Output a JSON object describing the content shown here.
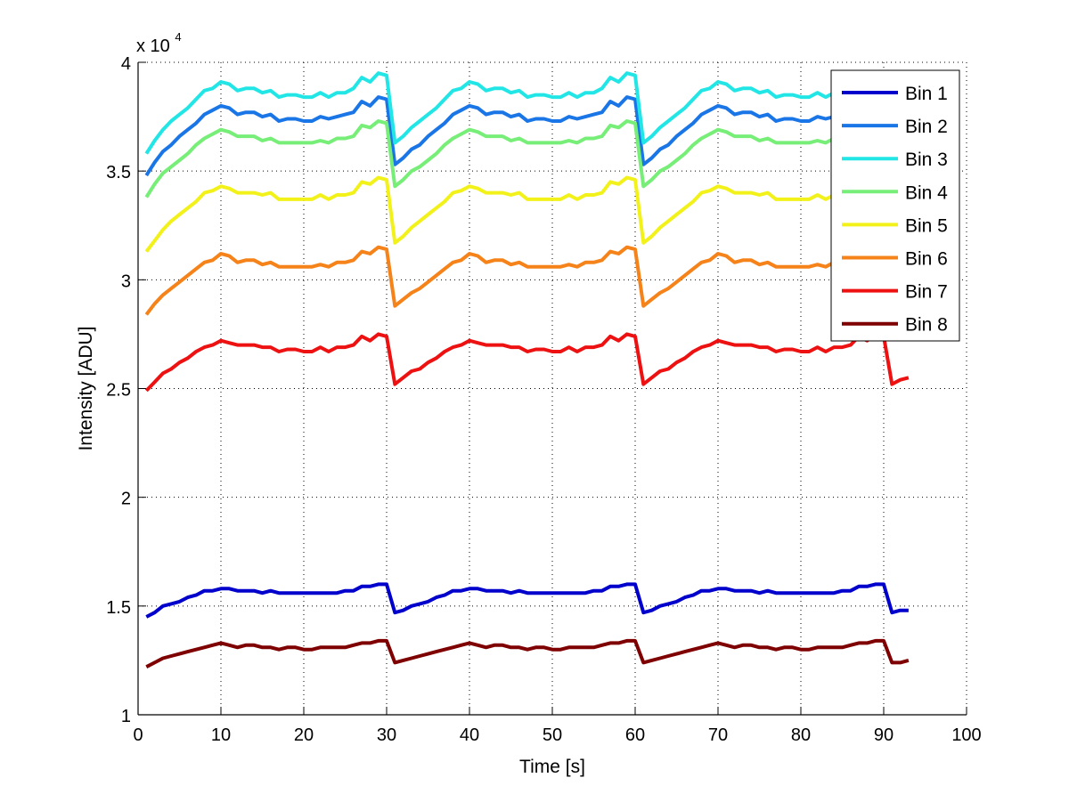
{
  "chart_data": {
    "type": "line",
    "title": "",
    "xlabel": "Time [s]",
    "ylabel": "Intensity [ADU]",
    "y_multiplier_label": "x 10",
    "y_multiplier_exponent": "4",
    "y_scale": 10000,
    "xlim": [
      0,
      100
    ],
    "ylim": [
      1,
      4
    ],
    "xticks": [
      0,
      10,
      20,
      30,
      40,
      50,
      60,
      70,
      80,
      90,
      100
    ],
    "xtick_labels": [
      "0",
      "10",
      "20",
      "30",
      "40",
      "50",
      "60",
      "70",
      "80",
      "90",
      "100"
    ],
    "yticks": [
      1,
      1.5,
      2,
      2.5,
      3,
      3.5,
      4
    ],
    "ytick_labels": [
      "1",
      "1.5",
      "2",
      "2.5",
      "3",
      "3.5",
      "4"
    ],
    "grid": true,
    "legend_position": "top-right",
    "x_start": 1,
    "x_step": 1,
    "series": [
      {
        "name": "Bin 1",
        "color": "#0000cc",
        "values": [
          1.45,
          1.47,
          1.5,
          1.51,
          1.52,
          1.54,
          1.55,
          1.57,
          1.57,
          1.58,
          1.58,
          1.57,
          1.57,
          1.57,
          1.56,
          1.57,
          1.56,
          1.56,
          1.56,
          1.56,
          1.56,
          1.56,
          1.56,
          1.56,
          1.57,
          1.57,
          1.59,
          1.59,
          1.6,
          1.6,
          1.47,
          1.48,
          1.5,
          1.51,
          1.52,
          1.54,
          1.55,
          1.57,
          1.57,
          1.58,
          1.58,
          1.57,
          1.57,
          1.57,
          1.56,
          1.57,
          1.56,
          1.56,
          1.56,
          1.56,
          1.56,
          1.56,
          1.56,
          1.56,
          1.57,
          1.57,
          1.59,
          1.59,
          1.6,
          1.6,
          1.47,
          1.48,
          1.5,
          1.51,
          1.52,
          1.54,
          1.55,
          1.57,
          1.57,
          1.58,
          1.58,
          1.57,
          1.57,
          1.57,
          1.56,
          1.57,
          1.56,
          1.56,
          1.56,
          1.56,
          1.56,
          1.56,
          1.56,
          1.56,
          1.57,
          1.57,
          1.59,
          1.59,
          1.6,
          1.6,
          1.47,
          1.48,
          1.48
        ]
      },
      {
        "name": "Bin 2",
        "color": "#1a75e6",
        "values": [
          3.48,
          3.54,
          3.59,
          3.62,
          3.66,
          3.69,
          3.72,
          3.76,
          3.78,
          3.8,
          3.79,
          3.76,
          3.77,
          3.77,
          3.75,
          3.76,
          3.73,
          3.74,
          3.74,
          3.73,
          3.73,
          3.75,
          3.74,
          3.75,
          3.76,
          3.77,
          3.82,
          3.8,
          3.84,
          3.83,
          3.53,
          3.56,
          3.6,
          3.62,
          3.66,
          3.69,
          3.72,
          3.76,
          3.78,
          3.8,
          3.79,
          3.76,
          3.77,
          3.77,
          3.75,
          3.76,
          3.73,
          3.74,
          3.74,
          3.73,
          3.73,
          3.75,
          3.74,
          3.75,
          3.76,
          3.77,
          3.82,
          3.8,
          3.84,
          3.83,
          3.53,
          3.56,
          3.6,
          3.62,
          3.66,
          3.69,
          3.72,
          3.76,
          3.78,
          3.8,
          3.79,
          3.76,
          3.77,
          3.77,
          3.75,
          3.76,
          3.73,
          3.74,
          3.74,
          3.73,
          3.73,
          3.75,
          3.74,
          3.75,
          3.76,
          3.77,
          3.82,
          3.8,
          3.84,
          3.83,
          3.53,
          3.54,
          3.56
        ]
      },
      {
        "name": "Bin 3",
        "color": "#22e6e6",
        "values": [
          3.58,
          3.64,
          3.69,
          3.73,
          3.76,
          3.79,
          3.83,
          3.87,
          3.88,
          3.91,
          3.9,
          3.87,
          3.88,
          3.88,
          3.86,
          3.87,
          3.84,
          3.85,
          3.85,
          3.84,
          3.84,
          3.86,
          3.84,
          3.86,
          3.86,
          3.88,
          3.93,
          3.91,
          3.95,
          3.94,
          3.63,
          3.66,
          3.7,
          3.73,
          3.76,
          3.79,
          3.83,
          3.87,
          3.88,
          3.91,
          3.9,
          3.87,
          3.88,
          3.88,
          3.86,
          3.87,
          3.84,
          3.85,
          3.85,
          3.84,
          3.84,
          3.86,
          3.84,
          3.86,
          3.86,
          3.88,
          3.93,
          3.91,
          3.95,
          3.94,
          3.63,
          3.66,
          3.7,
          3.73,
          3.76,
          3.79,
          3.83,
          3.87,
          3.88,
          3.91,
          3.9,
          3.87,
          3.88,
          3.88,
          3.86,
          3.87,
          3.84,
          3.85,
          3.85,
          3.84,
          3.84,
          3.86,
          3.84,
          3.86,
          3.86,
          3.88,
          3.93,
          3.91,
          3.95,
          3.94,
          3.63,
          3.65,
          3.66
        ]
      },
      {
        "name": "Bin 4",
        "color": "#77ee77",
        "values": [
          3.38,
          3.44,
          3.49,
          3.52,
          3.55,
          3.58,
          3.62,
          3.65,
          3.67,
          3.69,
          3.68,
          3.66,
          3.66,
          3.66,
          3.64,
          3.65,
          3.63,
          3.63,
          3.63,
          3.63,
          3.63,
          3.64,
          3.63,
          3.65,
          3.65,
          3.66,
          3.71,
          3.7,
          3.73,
          3.72,
          3.43,
          3.46,
          3.5,
          3.52,
          3.55,
          3.58,
          3.62,
          3.65,
          3.67,
          3.69,
          3.68,
          3.66,
          3.66,
          3.66,
          3.64,
          3.65,
          3.63,
          3.63,
          3.63,
          3.63,
          3.63,
          3.64,
          3.63,
          3.65,
          3.65,
          3.66,
          3.71,
          3.7,
          3.73,
          3.72,
          3.43,
          3.46,
          3.5,
          3.52,
          3.55,
          3.58,
          3.62,
          3.65,
          3.67,
          3.69,
          3.68,
          3.66,
          3.66,
          3.66,
          3.64,
          3.65,
          3.63,
          3.63,
          3.63,
          3.63,
          3.63,
          3.64,
          3.63,
          3.65,
          3.65,
          3.66,
          3.71,
          3.7,
          3.73,
          3.72,
          3.43,
          3.44,
          3.46
        ]
      },
      {
        "name": "Bin 5",
        "color": "#f2f21a",
        "values": [
          3.13,
          3.18,
          3.23,
          3.27,
          3.3,
          3.33,
          3.36,
          3.4,
          3.41,
          3.43,
          3.42,
          3.4,
          3.4,
          3.4,
          3.39,
          3.4,
          3.37,
          3.37,
          3.37,
          3.37,
          3.37,
          3.39,
          3.37,
          3.39,
          3.39,
          3.4,
          3.45,
          3.44,
          3.47,
          3.46,
          3.17,
          3.2,
          3.24,
          3.27,
          3.3,
          3.33,
          3.36,
          3.4,
          3.41,
          3.43,
          3.42,
          3.4,
          3.4,
          3.4,
          3.39,
          3.4,
          3.37,
          3.37,
          3.37,
          3.37,
          3.37,
          3.39,
          3.37,
          3.39,
          3.39,
          3.4,
          3.45,
          3.44,
          3.47,
          3.46,
          3.17,
          3.2,
          3.24,
          3.27,
          3.3,
          3.33,
          3.36,
          3.4,
          3.41,
          3.43,
          3.42,
          3.4,
          3.4,
          3.4,
          3.39,
          3.4,
          3.37,
          3.37,
          3.37,
          3.37,
          3.37,
          3.39,
          3.37,
          3.39,
          3.39,
          3.4,
          3.45,
          3.44,
          3.47,
          3.46,
          3.17,
          3.19,
          3.2
        ]
      },
      {
        "name": "Bin 6",
        "color": "#f5831a",
        "values": [
          2.84,
          2.89,
          2.93,
          2.96,
          2.99,
          3.02,
          3.05,
          3.08,
          3.09,
          3.12,
          3.11,
          3.08,
          3.09,
          3.09,
          3.07,
          3.08,
          3.06,
          3.06,
          3.06,
          3.06,
          3.06,
          3.07,
          3.06,
          3.08,
          3.08,
          3.09,
          3.13,
          3.12,
          3.15,
          3.14,
          2.88,
          2.91,
          2.94,
          2.96,
          2.99,
          3.02,
          3.05,
          3.08,
          3.09,
          3.12,
          3.11,
          3.08,
          3.09,
          3.09,
          3.07,
          3.08,
          3.06,
          3.06,
          3.06,
          3.06,
          3.06,
          3.07,
          3.06,
          3.08,
          3.08,
          3.09,
          3.13,
          3.12,
          3.15,
          3.14,
          2.88,
          2.91,
          2.94,
          2.96,
          2.99,
          3.02,
          3.05,
          3.08,
          3.09,
          3.12,
          3.11,
          3.08,
          3.09,
          3.09,
          3.07,
          3.08,
          3.06,
          3.06,
          3.06,
          3.06,
          3.06,
          3.07,
          3.06,
          3.08,
          3.08,
          3.09,
          3.13,
          3.12,
          3.15,
          3.14,
          2.88,
          2.9,
          2.91
        ]
      },
      {
        "name": "Bin 7",
        "color": "#ee1111",
        "values": [
          2.49,
          2.53,
          2.57,
          2.59,
          2.62,
          2.64,
          2.67,
          2.69,
          2.7,
          2.72,
          2.71,
          2.7,
          2.7,
          2.7,
          2.69,
          2.69,
          2.67,
          2.68,
          2.68,
          2.67,
          2.67,
          2.69,
          2.67,
          2.69,
          2.69,
          2.7,
          2.74,
          2.72,
          2.75,
          2.74,
          2.52,
          2.55,
          2.58,
          2.59,
          2.62,
          2.64,
          2.67,
          2.69,
          2.7,
          2.72,
          2.71,
          2.7,
          2.7,
          2.7,
          2.69,
          2.69,
          2.67,
          2.68,
          2.68,
          2.67,
          2.67,
          2.69,
          2.67,
          2.69,
          2.69,
          2.7,
          2.74,
          2.72,
          2.75,
          2.74,
          2.52,
          2.55,
          2.58,
          2.59,
          2.62,
          2.64,
          2.67,
          2.69,
          2.7,
          2.72,
          2.71,
          2.7,
          2.7,
          2.7,
          2.69,
          2.69,
          2.67,
          2.68,
          2.68,
          2.67,
          2.67,
          2.69,
          2.67,
          2.69,
          2.69,
          2.7,
          2.74,
          2.72,
          2.75,
          2.74,
          2.52,
          2.54,
          2.55
        ]
      },
      {
        "name": "Bin 8",
        "color": "#7f0000",
        "values": [
          1.22,
          1.24,
          1.26,
          1.27,
          1.28,
          1.29,
          1.3,
          1.31,
          1.32,
          1.33,
          1.32,
          1.31,
          1.32,
          1.32,
          1.31,
          1.31,
          1.3,
          1.31,
          1.31,
          1.3,
          1.3,
          1.31,
          1.31,
          1.31,
          1.31,
          1.32,
          1.33,
          1.33,
          1.34,
          1.34,
          1.24,
          1.25,
          1.26,
          1.27,
          1.28,
          1.29,
          1.3,
          1.31,
          1.32,
          1.33,
          1.32,
          1.31,
          1.32,
          1.32,
          1.31,
          1.31,
          1.3,
          1.31,
          1.31,
          1.3,
          1.3,
          1.31,
          1.31,
          1.31,
          1.31,
          1.32,
          1.33,
          1.33,
          1.34,
          1.34,
          1.24,
          1.25,
          1.26,
          1.27,
          1.28,
          1.29,
          1.3,
          1.31,
          1.32,
          1.33,
          1.32,
          1.31,
          1.32,
          1.32,
          1.31,
          1.31,
          1.3,
          1.31,
          1.31,
          1.3,
          1.3,
          1.31,
          1.31,
          1.31,
          1.31,
          1.32,
          1.33,
          1.33,
          1.34,
          1.34,
          1.24,
          1.24,
          1.25
        ]
      }
    ]
  }
}
